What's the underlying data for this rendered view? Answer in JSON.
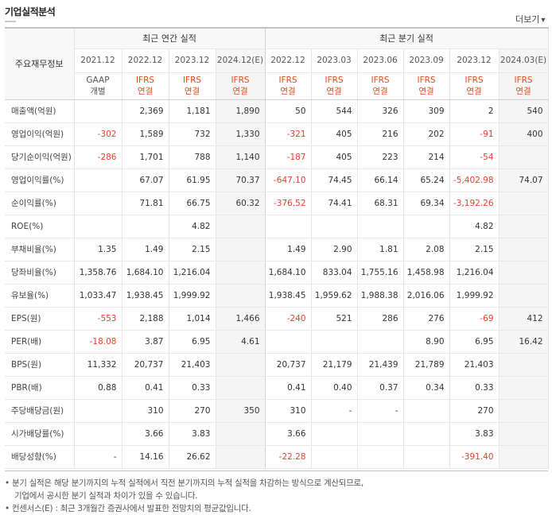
{
  "section_title": "기업실적분석",
  "more_label": "더보기",
  "more_arrow": "▾",
  "header": {
    "label": "주요재무정보",
    "annual_group": "최근 연간 실적",
    "quarterly_group": "최근 분기 실적",
    "annual_periods": [
      "2021.12",
      "2022.12",
      "2023.12",
      "2024.12(E)"
    ],
    "quarterly_periods": [
      "2022.12",
      "2023.03",
      "2023.06",
      "2023.09",
      "2023.12",
      "2024.03(E)"
    ],
    "annual_standards": [
      [
        "GAAP",
        "개별"
      ],
      [
        "IFRS",
        "연결"
      ],
      [
        "IFRS",
        "연결"
      ],
      [
        "IFRS",
        "연결"
      ]
    ],
    "quarterly_standards": [
      [
        "IFRS",
        "연결"
      ],
      [
        "IFRS",
        "연결"
      ],
      [
        "IFRS",
        "연결"
      ],
      [
        "IFRS",
        "연결"
      ],
      [
        "IFRS",
        "연결"
      ],
      [
        "IFRS",
        "연결"
      ]
    ]
  },
  "rows": [
    {
      "label": "매출액(억원)",
      "annual": [
        "",
        "2,369",
        "1,181",
        "1,890"
      ],
      "quarterly": [
        "50",
        "544",
        "326",
        "309",
        "2",
        "540"
      ]
    },
    {
      "label": "영업이익(억원)",
      "annual": [
        "-302",
        "1,589",
        "732",
        "1,330"
      ],
      "quarterly": [
        "-321",
        "405",
        "216",
        "202",
        "-91",
        "400"
      ]
    },
    {
      "label": "당기순이익(억원)",
      "annual": [
        "-286",
        "1,701",
        "788",
        "1,140"
      ],
      "quarterly": [
        "-187",
        "405",
        "223",
        "214",
        "-54",
        ""
      ]
    },
    {
      "label": "영업이익률(%)",
      "annual": [
        "",
        "67.07",
        "61.95",
        "70.37"
      ],
      "quarterly": [
        "-647.10",
        "74.45",
        "66.14",
        "65.24",
        "-5,402.98",
        "74.07"
      ]
    },
    {
      "label": "순이익률(%)",
      "annual": [
        "",
        "71.81",
        "66.75",
        "60.32"
      ],
      "quarterly": [
        "-376.52",
        "74.41",
        "68.31",
        "69.34",
        "-3,192.26",
        ""
      ]
    },
    {
      "label": "ROE(%)",
      "annual": [
        "",
        "",
        "4.82",
        ""
      ],
      "quarterly": [
        "",
        "",
        "",
        "",
        "4.82",
        ""
      ]
    },
    {
      "label": "부채비율(%)",
      "annual": [
        "1.35",
        "1.49",
        "2.15",
        ""
      ],
      "quarterly": [
        "1.49",
        "2.90",
        "1.81",
        "2.08",
        "2.15",
        ""
      ]
    },
    {
      "label": "당좌비율(%)",
      "annual": [
        "1,358.76",
        "1,684.10",
        "1,216.04",
        ""
      ],
      "quarterly": [
        "1,684.10",
        "833.04",
        "1,755.16",
        "1,458.98",
        "1,216.04",
        ""
      ]
    },
    {
      "label": "유보율(%)",
      "annual": [
        "1,033.47",
        "1,938.45",
        "1,999.92",
        ""
      ],
      "quarterly": [
        "1,938.45",
        "1,959.62",
        "1,988.38",
        "2,016.06",
        "1,999.92",
        ""
      ]
    },
    {
      "label": "EPS(원)",
      "annual": [
        "-553",
        "2,188",
        "1,014",
        "1,466"
      ],
      "quarterly": [
        "-240",
        "521",
        "286",
        "276",
        "-69",
        "412"
      ]
    },
    {
      "label": "PER(배)",
      "annual": [
        "-18.08",
        "3.87",
        "6.95",
        "4.61"
      ],
      "quarterly": [
        "",
        "",
        "",
        "8.90",
        "6.95",
        "16.42"
      ]
    },
    {
      "label": "BPS(원)",
      "annual": [
        "11,332",
        "20,737",
        "21,403",
        ""
      ],
      "quarterly": [
        "20,737",
        "21,179",
        "21,439",
        "21,789",
        "21,403",
        ""
      ]
    },
    {
      "label": "PBR(배)",
      "annual": [
        "0.88",
        "0.41",
        "0.33",
        ""
      ],
      "quarterly": [
        "0.41",
        "0.40",
        "0.37",
        "0.34",
        "0.33",
        ""
      ]
    },
    {
      "label": "주당배당금(원)",
      "annual": [
        "",
        "310",
        "270",
        "350"
      ],
      "quarterly": [
        "310",
        "-",
        "-",
        "",
        "270",
        ""
      ]
    },
    {
      "label": "시가배당률(%)",
      "annual": [
        "",
        "3.66",
        "3.83",
        ""
      ],
      "quarterly": [
        "3.66",
        "",
        "",
        "",
        "3.83",
        ""
      ]
    },
    {
      "label": "배당성향(%)",
      "annual": [
        "-",
        "14.16",
        "26.62",
        ""
      ],
      "quarterly": [
        "-22.28",
        "",
        "",
        "",
        "-391.40",
        ""
      ]
    }
  ],
  "notes": [
    "분기 실적은 해당 분기까지의 누적 실적에서 직전 분기까지의 누적 실적을 차감하는 방식으로 계산되므로,",
    "기업에서 공시한 분기 실적과 차이가 있을 수 있습니다.",
    "컨센서스(E) : 최근 3개월간 증권사에서 발표한 전망치의 평균값입니다."
  ],
  "colors": {
    "ifrs": "#e24c1b",
    "negative": "#e8402c",
    "estimate_bg": "#f5f5f5"
  }
}
